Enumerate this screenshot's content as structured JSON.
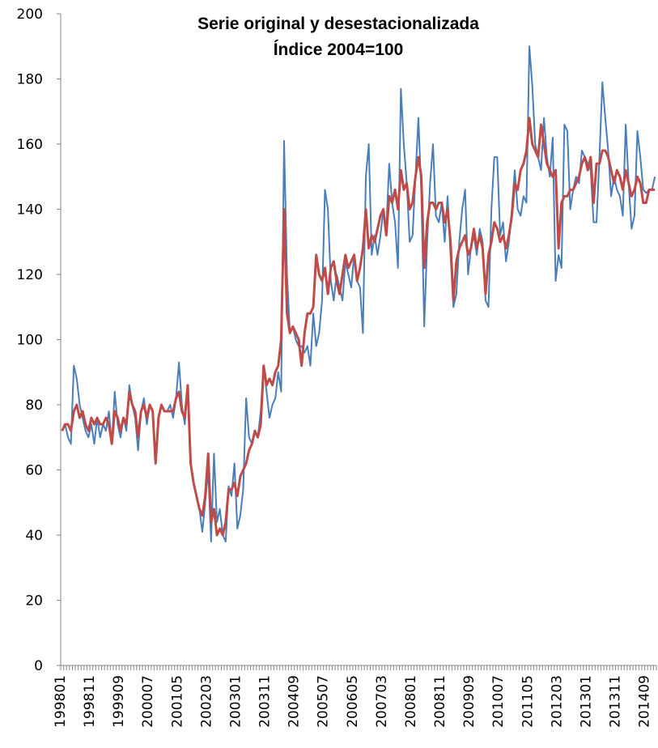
{
  "chart_data": {
    "type": "line",
    "title": "Serie original y desestacionalizada",
    "subtitle": "Índice 2004=100",
    "categories": [
      "199801",
      null,
      null,
      null,
      null,
      null,
      null,
      null,
      null,
      null,
      "199811",
      null,
      null,
      null,
      null,
      null,
      null,
      null,
      null,
      null,
      "199909",
      null,
      null,
      null,
      null,
      null,
      null,
      null,
      null,
      null,
      "200007",
      null,
      null,
      null,
      null,
      null,
      null,
      null,
      null,
      null,
      "200105",
      null,
      null,
      null,
      null,
      null,
      null,
      null,
      null,
      null,
      "200203",
      null,
      null,
      null,
      null,
      null,
      null,
      null,
      null,
      null,
      "200301",
      null,
      null,
      null,
      null,
      null,
      null,
      null,
      null,
      null,
      "200311",
      null,
      null,
      null,
      null,
      null,
      null,
      null,
      null,
      null,
      "200409",
      null,
      null,
      null,
      null,
      null,
      null,
      null,
      null,
      null,
      "200507",
      null,
      null,
      null,
      null,
      null,
      null,
      null,
      null,
      null,
      "200605",
      null,
      null,
      null,
      null,
      null,
      null,
      null,
      null,
      null,
      "200703",
      null,
      null,
      null,
      null,
      null,
      null,
      null,
      null,
      null,
      "200801",
      null,
      null,
      null,
      null,
      null,
      null,
      null,
      null,
      null,
      "200811",
      null,
      null,
      null,
      null,
      null,
      null,
      null,
      null,
      null,
      "200909",
      null,
      null,
      null,
      null,
      null,
      null,
      null,
      null,
      null,
      "201007",
      null,
      null,
      null,
      null,
      null,
      null,
      null,
      null,
      null,
      "201105",
      null,
      null,
      null,
      null,
      null,
      null,
      null,
      null,
      null,
      "201203",
      null,
      null,
      null,
      null,
      null,
      null,
      null,
      null,
      null,
      "201301",
      null,
      null,
      null,
      null,
      null,
      null,
      null,
      null,
      null,
      "201311",
      null,
      null,
      null,
      null,
      null,
      null,
      null,
      null,
      null,
      "201409",
      null,
      null,
      null
    ],
    "series": [
      {
        "color": "#4a7ebb",
        "values": [
          72,
          74,
          70,
          68,
          92,
          88,
          80,
          76,
          72,
          70,
          74,
          68,
          76,
          70,
          74,
          72,
          78,
          68,
          84,
          74,
          70,
          76,
          72,
          86,
          80,
          76,
          66,
          78,
          82,
          74,
          80,
          78,
          62,
          76,
          80,
          78,
          78,
          80,
          76,
          82,
          93,
          80,
          74,
          86,
          62,
          56,
          52,
          48,
          41,
          50,
          60,
          38,
          65,
          44,
          48,
          40,
          38,
          55,
          52,
          62,
          42,
          46,
          54,
          82,
          70,
          68,
          72,
          70,
          78,
          92,
          84,
          76,
          80,
          82,
          90,
          84,
          161,
          120,
          102,
          104,
          100,
          98,
          98,
          96,
          98,
          92,
          108,
          98,
          102,
          112,
          146,
          140,
          118,
          112,
          120,
          116,
          112,
          124,
          120,
          116,
          126,
          118,
          116,
          102,
          150,
          160,
          126,
          132,
          126,
          132,
          140,
          134,
          154,
          142,
          136,
          122,
          177,
          160,
          148,
          130,
          132,
          150,
          168,
          145,
          104,
          130,
          148,
          160,
          138,
          136,
          142,
          130,
          144,
          126,
          110,
          114,
          130,
          140,
          146,
          120,
          128,
          132,
          126,
          134,
          130,
          112,
          110,
          140,
          156,
          156,
          132,
          136,
          124,
          130,
          140,
          152,
          140,
          138,
          144,
          142,
          190,
          178,
          160,
          156,
          152,
          168,
          156,
          150,
          162,
          118,
          126,
          122,
          166,
          164,
          140,
          146,
          150,
          148,
          158,
          156,
          154,
          152,
          136,
          136,
          156,
          179,
          168,
          158,
          144,
          150,
          146,
          144,
          138,
          166,
          148,
          134,
          138,
          164,
          156,
          146,
          145,
          146,
          146,
          150
        ]
      },
      {
        "color": "#be4b48",
        "values": [
          72,
          74,
          74,
          72,
          78,
          80,
          76,
          78,
          74,
          72,
          76,
          74,
          76,
          74,
          74,
          76,
          74,
          68,
          78,
          76,
          72,
          76,
          74,
          84,
          80,
          78,
          70,
          78,
          80,
          76,
          80,
          78,
          62,
          76,
          80,
          78,
          78,
          78,
          78,
          82,
          84,
          78,
          76,
          86,
          62,
          56,
          52,
          48,
          46,
          52,
          65,
          44,
          48,
          40,
          42,
          40,
          44,
          54,
          54,
          56,
          52,
          58,
          60,
          62,
          66,
          68,
          72,
          70,
          74,
          92,
          86,
          88,
          86,
          90,
          92,
          100,
          140,
          108,
          102,
          104,
          102,
          100,
          92,
          102,
          108,
          108,
          110,
          126,
          120,
          118,
          122,
          114,
          122,
          124,
          118,
          114,
          120,
          126,
          122,
          124,
          126,
          118,
          122,
          128,
          140,
          128,
          132,
          130,
          134,
          138,
          140,
          132,
          144,
          142,
          146,
          140,
          152,
          146,
          148,
          140,
          142,
          150,
          156,
          150,
          122,
          136,
          142,
          142,
          140,
          142,
          142,
          136,
          140,
          130,
          112,
          124,
          128,
          130,
          132,
          126,
          128,
          134,
          128,
          132,
          128,
          114,
          126,
          130,
          136,
          134,
          130,
          132,
          128,
          132,
          138,
          148,
          146,
          152,
          154,
          158,
          168,
          160,
          158,
          156,
          166,
          160,
          154,
          152,
          150,
          152,
          128,
          142,
          144,
          144,
          146,
          146,
          148,
          150,
          154,
          156,
          152,
          156,
          142,
          154,
          154,
          158,
          158,
          156,
          152,
          148,
          152,
          150,
          146,
          152,
          148,
          144,
          146,
          150,
          148,
          142,
          142,
          146,
          146,
          146
        ]
      }
    ],
    "ylim": [
      0,
      200
    ],
    "yticks": [
      0,
      20,
      40,
      60,
      80,
      100,
      120,
      140,
      160,
      180,
      200
    ],
    "grid": false
  }
}
